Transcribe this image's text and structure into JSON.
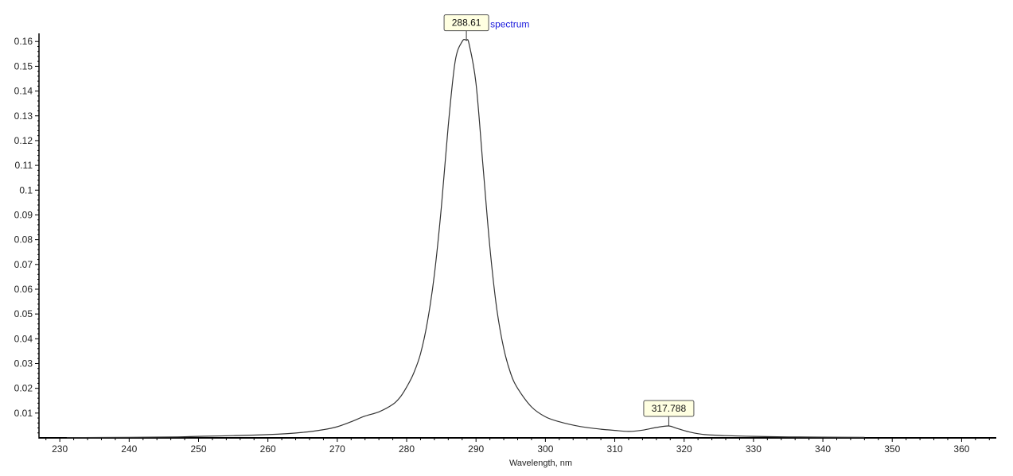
{
  "chart_data": {
    "type": "line",
    "title": "",
    "xlabel": "Wavelength, nm",
    "ylabel": "",
    "xlim": [
      227,
      365
    ],
    "ylim": [
      0,
      0.162
    ],
    "x_ticks": [
      230,
      240,
      250,
      260,
      270,
      280,
      290,
      300,
      310,
      320,
      330,
      340,
      350,
      360
    ],
    "y_ticks": [
      0.01,
      0.02,
      0.03,
      0.04,
      0.05,
      0.06,
      0.07,
      0.08,
      0.09,
      0.1,
      0.11,
      0.12,
      0.13,
      0.14,
      0.15,
      0.16
    ],
    "y_tick_labels": [
      "0.01",
      "0.02",
      "0.03",
      "0.04",
      "0.05",
      "0.06",
      "0.07",
      "0.08",
      "0.09",
      "0.1",
      "0.11",
      "0.12",
      "0.13",
      "0.14",
      "0.15",
      "0.16"
    ],
    "grid": false,
    "series": [
      {
        "name": "spectrum",
        "x": [
          231,
          240,
          247,
          250,
          255,
          260,
          265,
          268,
          270,
          272,
          274,
          276,
          278,
          279,
          280,
          281,
          282,
          283,
          284,
          285,
          286,
          287,
          288,
          288.61,
          289,
          290,
          291,
          292,
          293,
          294,
          295,
          296,
          298,
          300,
          302,
          305,
          308,
          310,
          312,
          314,
          316,
          317.788,
          319,
          321,
          323,
          326,
          330,
          335,
          340,
          346
        ],
        "y": [
          0.0001,
          0.0002,
          0.0004,
          0.0006,
          0.0009,
          0.0013,
          0.0022,
          0.0033,
          0.0045,
          0.0065,
          0.0088,
          0.0105,
          0.0135,
          0.0162,
          0.0205,
          0.026,
          0.034,
          0.047,
          0.066,
          0.093,
          0.126,
          0.152,
          0.16,
          0.1605,
          0.159,
          0.143,
          0.11,
          0.077,
          0.052,
          0.036,
          0.026,
          0.02,
          0.0125,
          0.0085,
          0.0065,
          0.0046,
          0.0035,
          0.003,
          0.0026,
          0.0031,
          0.0042,
          0.0048,
          0.0038,
          0.0022,
          0.0013,
          0.0009,
          0.0006,
          0.0004,
          0.0003,
          0.0002
        ]
      }
    ],
    "peaks": [
      {
        "label": "288.61",
        "x": 288.61,
        "y": 0.1605
      },
      {
        "label": "317.788",
        "x": 317.788,
        "y": 0.0048
      }
    ],
    "colors": {
      "line": "#333333",
      "axis": "#000000",
      "series_label": "#1a1adc",
      "peak_box": "#ffffe1"
    }
  }
}
